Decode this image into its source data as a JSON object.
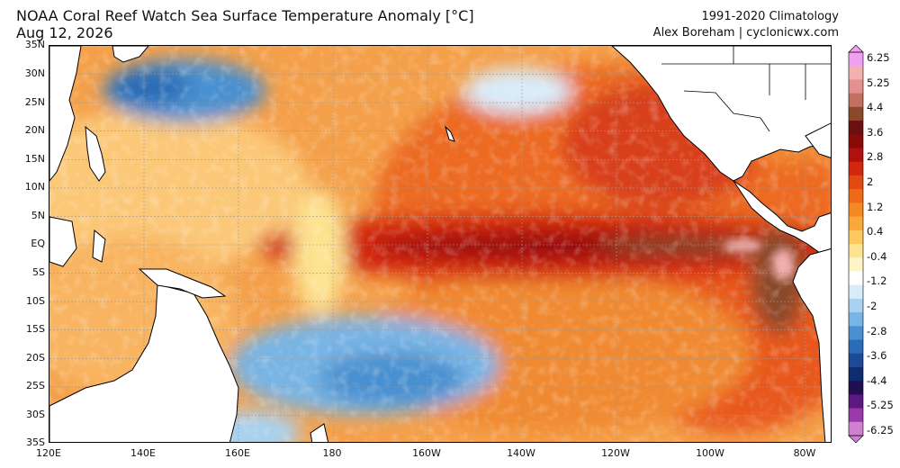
{
  "header": {
    "title": "NOAA Coral Reef Watch Sea Surface Temperature Anomaly [°C]",
    "date": "Aug 12, 2026",
    "climatology": "1991-2020 Climatology",
    "credit": "Alex Boreham | cyclonicwx.com"
  },
  "map": {
    "lat_labels": [
      "35N",
      "30N",
      "25N",
      "20N",
      "15N",
      "10N",
      "5N",
      "EQ",
      "5S",
      "10S",
      "15S",
      "20S",
      "25S",
      "30S",
      "35S"
    ],
    "lon_labels": [
      "120E",
      "140E",
      "160E",
      "180",
      "160W",
      "140W",
      "120W",
      "100W",
      "80W"
    ]
  },
  "colorbar": {
    "labels": [
      "6.25",
      "5.25",
      "4.4",
      "3.6",
      "2.8",
      "2",
      "1.2",
      "0.4",
      "-0.4",
      "-1.2",
      "-2",
      "-2.8",
      "-3.6",
      "-4.4",
      "-5.25",
      "-6.25"
    ],
    "colors": [
      "#f0a0f0",
      "#f3b0b0",
      "#e39090",
      "#c07060",
      "#8a4a2a",
      "#6a1010",
      "#8a0a0a",
      "#b01010",
      "#d22810",
      "#e24a10",
      "#ee6a18",
      "#f58a22",
      "#f9a83a",
      "#fcc860",
      "#fde290",
      "#fff4c8",
      "#ffffff",
      "#d8ecfa",
      "#a8d2f0",
      "#78b4e4",
      "#4a90d0",
      "#2c6cb6",
      "#1c4a96",
      "#102c70",
      "#201050",
      "#5a1880",
      "#9a3aa8",
      "#d080d0"
    ],
    "accent_warm": "#d2381a",
    "accent_cold": "#2c6cb6"
  }
}
